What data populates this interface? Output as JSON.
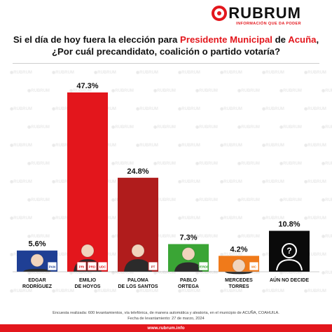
{
  "brand": {
    "name": "RUBRUM",
    "tagline": "INFORMACIÓN QUE DA PODER",
    "website": "www.rubrum.info",
    "accent_color": "#e3161c"
  },
  "question": {
    "part1": "Si el día de hoy fuera la elección para ",
    "highlight1": "Presidente Municipal",
    "part2": " de ",
    "highlight2": "Acuña",
    "part3": ", ¿Por cuál precandidato, coalición o partido votaría?"
  },
  "chart_data": {
    "type": "bar",
    "categories": [
      "EDGAR RODRÍGUEZ",
      "EMILIO DE HOYOS",
      "PALOMA DE LOS SANTOS",
      "PABLO ORTEGA",
      "MERCEDES TORRES",
      "AÚN NO DECIDE"
    ],
    "values": [
      5.6,
      47.3,
      24.8,
      7.3,
      4.2,
      10.8
    ],
    "value_labels": [
      "5.6%",
      "47.3%",
      "24.8%",
      "7.3%",
      "4.2%",
      "10.8%"
    ],
    "label_lines": [
      [
        "EDGAR",
        "RODRÍGUEZ"
      ],
      [
        "EMILIO",
        "DE HOYOS"
      ],
      [
        "PALOMA",
        "DE LOS SANTOS"
      ],
      [
        "PABLO",
        "ORTEGA"
      ],
      [
        "MERCEDES",
        "TORRES"
      ],
      [
        "AÚN NO DECIDE"
      ]
    ],
    "colors": [
      "#1f3f94",
      "#e3161c",
      "#b01c1c",
      "#3aa535",
      "#f07a1a",
      "#0a0a0a"
    ],
    "party_badges": [
      [
        "PAN"
      ],
      [
        "PRI",
        "PRD",
        "UDC"
      ],
      [
        "PT"
      ],
      [
        "VERDE"
      ],
      [
        "MC"
      ],
      []
    ],
    "ylim": [
      0,
      50
    ],
    "grid": false,
    "legend": "none"
  },
  "footer": {
    "line1": "Encuesta realizada: 600 levantamientos, vía telefónica, de manera automática y aleatoria, en el municipio de ACUÑA, COAHUILA.",
    "line2": "Fecha de levantamiento: 27 de marzo, 2024"
  }
}
